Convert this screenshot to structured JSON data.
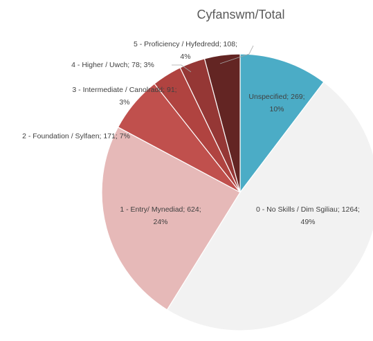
{
  "chart_data": {
    "type": "pie",
    "title": "Cyfanswm/Total",
    "values": [
      269,
      1264,
      624,
      171,
      91,
      78,
      108
    ],
    "value_labels": [
      [
        "Unspecified; 269;",
        "10%"
      ],
      [
        "0 - No Skills / Dim Sgiliau; 1264;",
        "49%"
      ],
      [
        "1 - Entry/ Mynediad; 624;",
        "24%"
      ],
      [
        "2 - Foundation / Sylfaen; 171; 7%"
      ],
      [
        "3 - Intermediate / Canolradd; 91;",
        "3%"
      ],
      [
        "4 - Higher / Uwch; 78; 3%"
      ],
      [
        "5 - Proficiency / Hyfedredd; 108;",
        "4%"
      ]
    ],
    "colors": [
      "#4bacc6",
      "#f2f2f2",
      "#e6b9b8",
      "#c0504d",
      "#b04340",
      "#953735",
      "#632523"
    ]
  }
}
